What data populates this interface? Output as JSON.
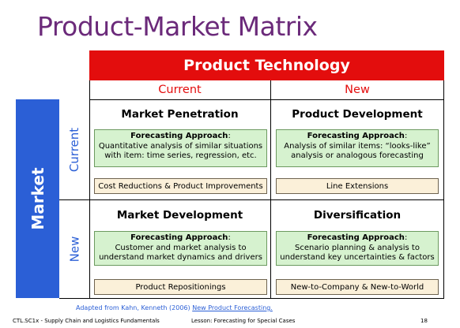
{
  "title": "Product-Market Matrix",
  "product_header": "Product Technology",
  "market_header": "Market",
  "columns": [
    "Current",
    "New"
  ],
  "rows": [
    "Current",
    "New"
  ],
  "quadrants": [
    {
      "title": "Market Penetration",
      "approach_label": "Forecasting Approach",
      "approach_text": "Quantitative analysis of similar situations with item: time series, regression, etc.",
      "examples": "Cost Reductions & Product Improvements"
    },
    {
      "title": "Product Development",
      "approach_label": "Forecasting Approach",
      "approach_text": "Analysis of similar items: “looks-like” analysis or analogous forecasting",
      "examples": "Line Extensions"
    },
    {
      "title": "Market Development",
      "approach_label": "Forecasting Approach",
      "approach_text": "Customer and market analysis to understand market dynamics and drivers",
      "examples": "Product Repositionings"
    },
    {
      "title": "Diversification",
      "approach_label": "Forecasting Approach",
      "approach_text": "Scenario planning & analysis to understand key uncertainties & factors",
      "examples": "New-to-Company & New-to-World"
    }
  ],
  "credit": {
    "prefix": "Adapted from Kahn, Kenneth (2006) ",
    "link": "New Product Forecasting."
  },
  "footer": {
    "course": "CTL.SC1x - Supply Chain and Logistics Fundamentals",
    "lesson": "Lesson:  Forecasting for Special Cases",
    "page": "18"
  },
  "colors": {
    "title": "#6b2a7a",
    "red": "#e30d0d",
    "blue": "#2b5fd6",
    "green_fill": "#d6f2cf",
    "tan_fill": "#fbf0d9"
  }
}
